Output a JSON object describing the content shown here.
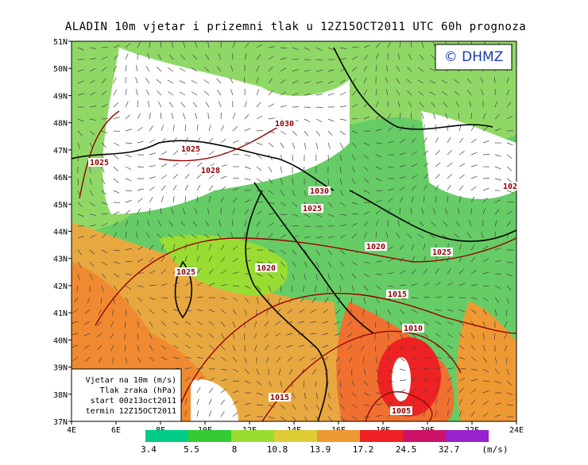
{
  "title": "ALADIN 10m vjetar i prizemni tlak u 12Z15OCT2011 UTC 60h prognoza",
  "logo": "© DHMZ",
  "lat_ticks": [
    "51N",
    "50N",
    "49N",
    "48N",
    "47N",
    "46N",
    "45N",
    "44N",
    "43N",
    "42N",
    "41N",
    "40N",
    "39N",
    "38N",
    "37N"
  ],
  "lon_ticks": [
    "4E",
    "6E",
    "8E",
    "10E",
    "12E",
    "14E",
    "16E",
    "18E",
    "20E",
    "22E",
    "24E"
  ],
  "info_box": [
    "Vjetar na 10m (m/s)",
    "Tlak zraka (hPa)",
    "start 00z13oct2011",
    "termin 12Z15OCT2011"
  ],
  "colorbar": {
    "labels": [
      "3.4",
      "5.5",
      "8",
      "10.8",
      "13.9",
      "17.2",
      "24.5",
      "32.7"
    ],
    "unit": "(m/s)",
    "colors": [
      "#00cc88",
      "#33cc33",
      "#99dd33",
      "#ddcc33",
      "#ee9933",
      "#ee2222",
      "#cc1166",
      "#9922cc"
    ]
  },
  "isobar_labels": [
    "1030",
    "1025",
    "1025",
    "1028",
    "1030",
    "1025",
    "1020",
    "1025",
    "1025",
    "1020",
    "1015",
    "1010",
    "1015",
    "1005",
    "102"
  ]
}
